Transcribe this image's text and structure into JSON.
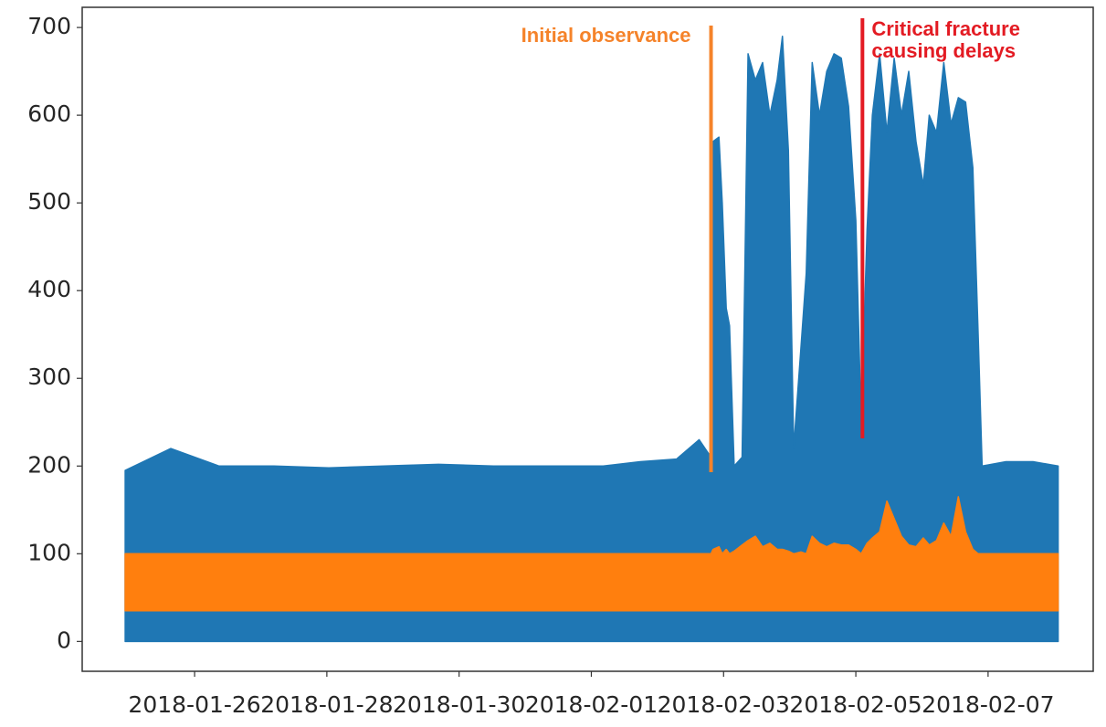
{
  "chart_data": {
    "type": "area",
    "x": [
      17555.95,
      17556.64,
      17557.37,
      17558.2,
      17559.03,
      17559.86,
      17560.69,
      17561.52,
      17562.35,
      17563.18,
      17563.74,
      17564.29,
      17564.63,
      17564.81,
      17564.84,
      17564.93,
      17564.98,
      17565.04,
      17565.09,
      17565.16,
      17565.28,
      17565.37,
      17565.48,
      17565.59,
      17565.7,
      17565.81,
      17565.89,
      17565.98,
      17566.06,
      17566.17,
      17566.25,
      17566.34,
      17566.45,
      17566.56,
      17566.67,
      17566.78,
      17566.89,
      17567.0,
      17567.08,
      17567.17,
      17567.25,
      17567.36,
      17567.47,
      17567.58,
      17567.69,
      17567.8,
      17567.91,
      17568.02,
      17568.11,
      17568.22,
      17568.33,
      17568.44,
      17568.55,
      17568.66,
      17568.77,
      17568.85,
      17568.91,
      17569.27,
      17569.68,
      17570.06
    ],
    "series": [
      {
        "color": "#1f77b4",
        "values": [
          195,
          220,
          200,
          200,
          198,
          200,
          202,
          200,
          200,
          200,
          205,
          208,
          230,
          210,
          570,
          575,
          500,
          380,
          360,
          200,
          210,
          670,
          640,
          660,
          600,
          640,
          690,
          560,
          220,
          335,
          420,
          660,
          600,
          650,
          670,
          665,
          610,
          480,
          250,
          470,
          600,
          670,
          580,
          665,
          600,
          650,
          570,
          520,
          600,
          580,
          660,
          590,
          620,
          615,
          540,
          350,
          200,
          205,
          205,
          200
        ]
      },
      {
        "color": "#ff7f0e",
        "values": [
          100,
          100,
          100,
          100,
          100,
          100,
          100,
          100,
          100,
          100,
          100,
          100,
          100,
          100,
          105,
          108,
          100,
          105,
          100,
          103,
          110,
          115,
          120,
          108,
          112,
          105,
          105,
          103,
          100,
          102,
          100,
          120,
          112,
          108,
          112,
          110,
          110,
          105,
          100,
          112,
          118,
          125,
          160,
          140,
          120,
          110,
          108,
          118,
          110,
          115,
          135,
          120,
          165,
          125,
          105,
          100,
          100,
          100,
          100,
          100
        ],
        "lows": [
          35,
          35,
          35,
          35,
          35,
          35,
          35,
          35,
          35,
          35,
          35,
          35,
          35,
          35,
          35,
          35,
          35,
          35,
          35,
          35,
          35,
          35,
          35,
          35,
          35,
          35,
          35,
          35,
          35,
          35,
          35,
          35,
          35,
          35,
          35,
          35,
          35,
          35,
          35,
          35,
          35,
          35,
          35,
          35,
          35,
          35,
          35,
          35,
          35,
          35,
          35,
          35,
          35,
          35,
          35,
          35,
          35,
          35,
          35,
          35
        ]
      }
    ],
    "xlim": [
      17555.3,
      17570.59
    ],
    "xticks": [
      {
        "value": 17557,
        "label": "2018-01-26"
      },
      {
        "value": 17559,
        "label": "2018-01-28"
      },
      {
        "value": 17561,
        "label": "2018-01-30"
      },
      {
        "value": 17563,
        "label": "2018-02-01"
      },
      {
        "value": 17565,
        "label": "2018-02-03"
      },
      {
        "value": 17567,
        "label": "2018-02-05"
      },
      {
        "value": 17569,
        "label": "2018-02-07"
      }
    ],
    "ylim": [
      -34,
      723
    ],
    "yticks": [
      0,
      100,
      200,
      300,
      400,
      500,
      600,
      700
    ],
    "annotations": [
      {
        "text": [
          "Initial observance"
        ],
        "x": 17564.81,
        "color": "#f5832a"
      },
      {
        "text": [
          "Critical fracture",
          "causing delays"
        ],
        "x": 17567.1,
        "color": "#e31b23"
      }
    ]
  }
}
